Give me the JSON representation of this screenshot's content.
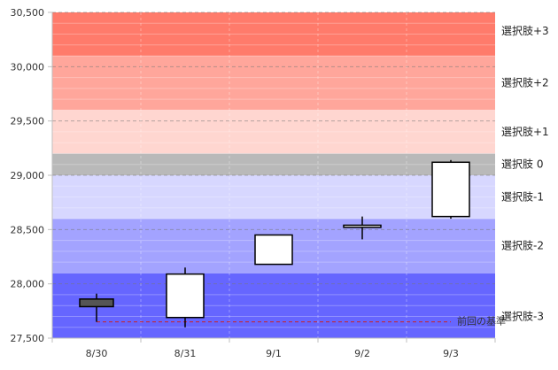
{
  "chart_data": {
    "type": "candlestick",
    "title": "",
    "xlabel": "",
    "ylabel": "",
    "ylim": [
      27500,
      30500
    ],
    "y_ticks": [
      "27,500",
      "28,000",
      "28,500",
      "29,000",
      "29,500",
      "30,000",
      "30,500"
    ],
    "y_tick_values": [
      27500,
      28000,
      28500,
      29000,
      29500,
      30000,
      30500
    ],
    "grid": true,
    "categories": [
      "8/30",
      "8/31",
      "9/1",
      "9/2",
      "9/3"
    ],
    "candles": [
      {
        "date": "8/30",
        "open": 27790,
        "high": 27910,
        "low": 27650,
        "close": 27860,
        "color": "#555555"
      },
      {
        "date": "8/31",
        "open": 27690,
        "high": 28150,
        "low": 27600,
        "close": 28090,
        "color": "#ffffff"
      },
      {
        "date": "9/1",
        "open": 28180,
        "high": 28450,
        "low": 28180,
        "close": 28450,
        "color": "#ffffff"
      },
      {
        "date": "9/2",
        "open": 28520,
        "high": 28620,
        "low": 28410,
        "close": 28540,
        "color": "#ffffff"
      },
      {
        "date": "9/3",
        "open": 28620,
        "high": 29140,
        "low": 28600,
        "close": 29120,
        "color": "#ffffff"
      }
    ],
    "bands": [
      {
        "label": "選択肢+3",
        "from": 30100,
        "to": 30500,
        "color": "#ff7b6b"
      },
      {
        "label": "選択肢+2",
        "from": 29600,
        "to": 30100,
        "color": "#ffa69b"
      },
      {
        "label": "選択肢+1",
        "from": 29200,
        "to": 29600,
        "color": "#ffd6d0"
      },
      {
        "label": "選択肢 0",
        "from": 29000,
        "to": 29200,
        "color": "#b9b9b9"
      },
      {
        "label": "選択肢-1",
        "from": 28600,
        "to": 29000,
        "color": "#d7d7ff"
      },
      {
        "label": "選択肢-2",
        "from": 28100,
        "to": 28600,
        "color": "#a3a3ff"
      },
      {
        "label": "選択肢-3",
        "from": 27500,
        "to": 28100,
        "color": "#6666ff"
      }
    ],
    "reference_line": {
      "label": "前回の基準",
      "value": 27650,
      "color": "#cc2222"
    }
  }
}
